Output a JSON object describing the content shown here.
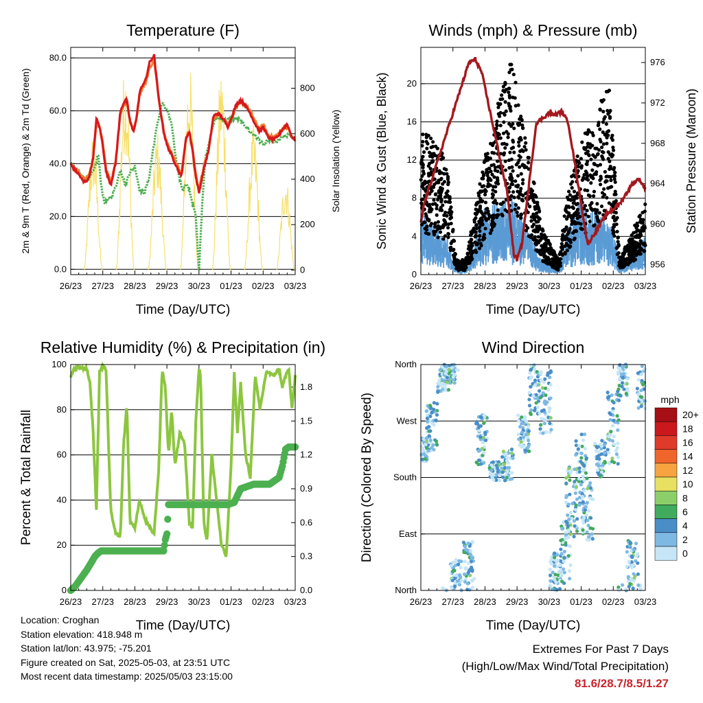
{
  "chart_data": [
    {
      "id": "temperature",
      "type": "line",
      "title": "Temperature (F)",
      "xlabel": "Time (Day/UTC)",
      "ylabel": "2m & 9m T (Red, Orange) & 2m Td (Green)",
      "ylabel_right": "Solar Insolation (Yellow)",
      "x_ticks": [
        "26/23",
        "27/23",
        "28/23",
        "29/23",
        "30/23",
        "01/23",
        "02/23",
        "03/23"
      ],
      "y_ticks": [
        "0.0",
        "20.0",
        "40.0",
        "60.0",
        "80.0"
      ],
      "y_ticks_right": [
        "0",
        "200",
        "400",
        "600",
        "800"
      ],
      "ylim": [
        -2,
        84
      ],
      "ylim_right": [
        -20,
        980
      ],
      "grid": true,
      "colors": {
        "t2m": "#d7191c",
        "t9m": "#f08030",
        "td2m": "#4caf50",
        "solar": "#f7e06a"
      },
      "series": [
        {
          "key": "t2m",
          "x": [
            0,
            0.1,
            0.25,
            0.4,
            0.55,
            0.7,
            0.8,
            0.9,
            1.0,
            1.1,
            1.25,
            1.4,
            1.55,
            1.65,
            1.75,
            1.85,
            1.95,
            2.05,
            2.15,
            2.25,
            2.35,
            2.45,
            2.6,
            2.75,
            2.9,
            3.0,
            3.15,
            3.3,
            3.45,
            3.6,
            3.7,
            3.8,
            3.9,
            4.0,
            4.15,
            4.3,
            4.45,
            4.6,
            4.75,
            4.9,
            5.0,
            5.15,
            5.3,
            5.45,
            5.6,
            5.75,
            5.9,
            6.0,
            6.15,
            6.3,
            6.45,
            6.6,
            6.75,
            6.9,
            7.0
          ],
          "y": [
            40,
            38,
            36,
            33,
            34,
            42,
            57,
            54,
            47,
            37,
            32,
            40,
            60,
            63,
            64,
            56,
            52,
            57,
            67,
            70,
            72,
            78,
            81,
            64,
            52,
            47,
            43,
            39,
            35,
            50,
            52,
            45,
            35,
            29,
            38,
            45,
            58,
            59,
            57,
            54,
            57,
            62,
            64,
            62,
            59,
            55,
            52,
            54,
            50,
            49,
            50,
            53,
            55,
            50,
            49
          ]
        },
        {
          "key": "t9m",
          "x": [
            0,
            0.1,
            0.25,
            0.4,
            0.55,
            0.7,
            0.8,
            0.9,
            1.0,
            1.1,
            1.25,
            1.4,
            1.55,
            1.65,
            1.75,
            1.85,
            1.95,
            2.05,
            2.15,
            2.25,
            2.35,
            2.45,
            2.6,
            2.75,
            2.9,
            3.0,
            3.15,
            3.3,
            3.45,
            3.6,
            3.7,
            3.8,
            3.9,
            4.0,
            4.15,
            4.3,
            4.45,
            4.6,
            4.75,
            4.9,
            5.0,
            5.15,
            5.3,
            5.45,
            5.6,
            5.75,
            5.9,
            6.0,
            6.15,
            6.3,
            6.45,
            6.6,
            6.75,
            6.9,
            7.0
          ],
          "y": [
            40,
            38.5,
            37,
            34,
            35,
            42,
            55,
            54,
            48,
            38,
            33,
            41,
            59,
            62,
            63,
            56,
            53,
            57,
            66,
            69,
            71,
            76,
            79,
            64,
            53,
            48,
            44,
            40,
            36,
            50,
            52,
            46,
            36,
            30,
            39,
            45,
            57,
            59,
            57,
            55,
            57,
            61,
            63,
            62,
            60,
            56,
            53,
            55,
            51,
            50,
            51,
            53,
            54,
            50,
            49
          ]
        },
        {
          "key": "td2m",
          "x": [
            0,
            0.15,
            0.3,
            0.45,
            0.6,
            0.75,
            0.85,
            0.95,
            1.05,
            1.15,
            1.3,
            1.45,
            1.55,
            1.7,
            1.85,
            2.0,
            2.15,
            2.3,
            2.45,
            2.55,
            2.7,
            2.85,
            3.0,
            3.15,
            3.3,
            3.4,
            3.5,
            3.6,
            3.7,
            3.8,
            3.9,
            3.95,
            4.0,
            4.1,
            4.2,
            4.35,
            4.5,
            4.65,
            4.8,
            5.0,
            5.2,
            5.4,
            5.6,
            5.8,
            6.0,
            6.2,
            6.4,
            6.6,
            6.8,
            7.0
          ],
          "y": [
            40,
            38,
            36,
            34,
            35,
            38,
            44,
            32,
            25,
            26,
            28,
            33,
            38,
            32,
            37,
            39,
            30,
            29,
            35,
            44,
            55,
            63,
            60,
            55,
            40,
            34,
            30,
            32,
            30,
            25,
            20,
            10,
            0,
            25,
            42,
            50,
            57,
            57,
            56,
            57,
            57,
            55,
            52,
            50,
            47,
            49,
            48,
            50,
            51,
            49
          ]
        },
        {
          "key": "solar",
          "axis": "right",
          "peaks": [
            {
              "x": 0.7,
              "y": 610
            },
            {
              "x": 1.7,
              "y": 930
            },
            {
              "x": 2.7,
              "y": 620
            },
            {
              "x": 3.7,
              "y": 920
            },
            {
              "x": 4.7,
              "y": 910
            },
            {
              "x": 5.7,
              "y": 640
            },
            {
              "x": 6.7,
              "y": 430
            }
          ]
        }
      ]
    },
    {
      "id": "winds",
      "type": "scatter",
      "title": "Winds (mph) & Pressure (mb)",
      "xlabel": "Time (Day/UTC)",
      "ylabel": "Sonic Wind & Gust (Blue, Black)",
      "ylabel_right": "Station Pressure (Maroon)",
      "x_ticks": [
        "26/23",
        "27/23",
        "28/23",
        "29/23",
        "30/23",
        "01/23",
        "02/23",
        "03/23"
      ],
      "y_ticks": [
        "0",
        "4",
        "8",
        "12",
        "16",
        "20"
      ],
      "y_ticks_right": [
        "956",
        "960",
        "964",
        "968",
        "972",
        "976"
      ],
      "ylim": [
        0,
        23.8
      ],
      "ylim_right": [
        955,
        977.5
      ],
      "grid": true,
      "colors": {
        "wind": "#5a9bd5",
        "gust": "#000000",
        "pressure": "#a3191e"
      },
      "wind_level": [
        {
          "x": 0,
          "y": 4
        },
        {
          "x": 0.8,
          "y": 2.5
        },
        {
          "x": 1.1,
          "y": 0.5
        },
        {
          "x": 1.4,
          "y": 0.5
        },
        {
          "x": 2.0,
          "y": 4.5
        },
        {
          "x": 2.9,
          "y": 5
        },
        {
          "x": 3.8,
          "y": 1
        },
        {
          "x": 4.3,
          "y": 0.5
        },
        {
          "x": 4.6,
          "y": 3
        },
        {
          "x": 5.0,
          "y": 5
        },
        {
          "x": 6.0,
          "y": 3
        },
        {
          "x": 6.2,
          "y": 0.5
        },
        {
          "x": 7.0,
          "y": 2.5
        }
      ],
      "gust_level": [
        {
          "x": 0,
          "y": 10
        },
        {
          "x": 0.8,
          "y": 8
        },
        {
          "x": 1.1,
          "y": 1
        },
        {
          "x": 1.4,
          "y": 1
        },
        {
          "x": 2.0,
          "y": 8
        },
        {
          "x": 2.8,
          "y": 15
        },
        {
          "x": 3.8,
          "y": 3
        },
        {
          "x": 4.3,
          "y": 1
        },
        {
          "x": 4.6,
          "y": 6
        },
        {
          "x": 5.0,
          "y": 9
        },
        {
          "x": 5.9,
          "y": 13
        },
        {
          "x": 6.2,
          "y": 1
        },
        {
          "x": 7.0,
          "y": 5
        }
      ],
      "pressure": {
        "x": [
          0,
          0.1,
          0.3,
          0.5,
          0.7,
          0.9,
          1.1,
          1.3,
          1.5,
          1.7,
          1.9,
          2.1,
          2.3,
          2.5,
          2.7,
          2.9,
          3.0,
          3.15,
          3.3,
          3.45,
          3.6,
          3.8,
          4.0,
          4.2,
          4.4,
          4.6,
          4.8,
          5.0,
          5.2,
          5.4,
          5.6,
          5.8,
          6.0,
          6.2,
          6.4,
          6.6,
          6.8,
          7.0
        ],
        "y": [
          960,
          962,
          964,
          966,
          968,
          970,
          972,
          974,
          976,
          976.3,
          975,
          972,
          969,
          966,
          963,
          957,
          956.5,
          958,
          962,
          966,
          970,
          970.5,
          971,
          970.8,
          971.2,
          970,
          966,
          962,
          958,
          959,
          960,
          961,
          961.5,
          962,
          963,
          964,
          964.5,
          963.5
        ]
      }
    },
    {
      "id": "humidity",
      "type": "line",
      "title": "Relative Humidity (%) & Precipitation (in)",
      "xlabel": "Time (Day/UTC)",
      "ylabel": "Percent & Total Rainfall",
      "x_ticks": [
        "26/23",
        "27/23",
        "28/23",
        "29/23",
        "30/23",
        "01/23",
        "02/23",
        "03/23"
      ],
      "y_ticks": [
        "0",
        "20",
        "40",
        "60",
        "80",
        "100"
      ],
      "y_ticks_right": [
        "0.0",
        "0.3",
        "0.6",
        "0.9",
        "1.2",
        "1.5",
        "1.8"
      ],
      "ylim": [
        0,
        100
      ],
      "ylim_right": [
        0,
        2.0
      ],
      "grid": true,
      "colors": {
        "rh": "#8cc63f",
        "precip": "#4cb050"
      },
      "series": [
        {
          "key": "rh",
          "x": [
            0,
            0.1,
            0.3,
            0.5,
            0.6,
            0.7,
            0.8,
            0.9,
            1.0,
            1.1,
            1.25,
            1.4,
            1.55,
            1.65,
            1.75,
            1.85,
            2.0,
            2.15,
            2.3,
            2.45,
            2.6,
            2.75,
            2.85,
            2.95,
            3.05,
            3.15,
            3.25,
            3.4,
            3.55,
            3.7,
            3.8,
            3.9,
            4.0,
            4.05,
            4.15,
            4.25,
            4.4,
            4.55,
            4.7,
            4.85,
            5.0,
            5.1,
            5.2,
            5.3,
            5.45,
            5.6,
            5.75,
            5.9,
            6.1,
            6.3,
            6.5,
            6.6,
            6.7,
            6.8,
            6.9,
            7.0
          ],
          "y": [
            95,
            98,
            99,
            98,
            92,
            70,
            35,
            97,
            99,
            98,
            35,
            25,
            24,
            65,
            82,
            30,
            28,
            40,
            32,
            28,
            25,
            55,
            98,
            90,
            60,
            80,
            55,
            70,
            65,
            30,
            28,
            75,
            98,
            95,
            30,
            22,
            60,
            40,
            20,
            15,
            55,
            96,
            70,
            92,
            60,
            50,
            95,
            80,
            97,
            95,
            98,
            90,
            95,
            98,
            80,
            95
          ]
        },
        {
          "key": "precip",
          "axis": "right",
          "x": [
            0,
            0.15,
            0.3,
            0.5,
            0.65,
            0.75,
            0.85,
            0.95,
            1.0,
            2.9,
            2.95,
            3.0,
            3.05,
            4.9,
            5.1,
            5.2,
            5.3,
            5.5,
            5.7,
            6.2,
            6.5,
            6.6,
            6.7,
            6.8,
            7.0
          ],
          "y": [
            0,
            0.04,
            0.1,
            0.18,
            0.25,
            0.3,
            0.33,
            0.35,
            0.35,
            0.35,
            0.45,
            0.5,
            0.76,
            0.76,
            0.78,
            0.84,
            0.9,
            0.92,
            0.94,
            0.94,
            1.0,
            1.1,
            1.25,
            1.27,
            1.27
          ]
        }
      ]
    },
    {
      "id": "direction",
      "type": "scatter",
      "title": "Wind Direction",
      "xlabel": "Time (Day/UTC)",
      "ylabel": "Direction (Colored By Speed)",
      "x_ticks": [
        "26/23",
        "27/23",
        "28/23",
        "29/23",
        "30/23",
        "01/23",
        "02/23",
        "03/23"
      ],
      "y_ticks": [
        "North",
        "East",
        "South",
        "West",
        "North"
      ],
      "ylim": [
        0,
        360
      ],
      "grid": true,
      "legend": {
        "title": "mph",
        "placement": "right",
        "labels": [
          "20+",
          "18",
          "16",
          "14",
          "12",
          "10",
          "8",
          "6",
          "4",
          "2",
          "0"
        ],
        "colors": [
          "#a50f15",
          "#cb181d",
          "#e03a2a",
          "#f0652c",
          "#f7a440",
          "#e8e060",
          "#8ccf6a",
          "#41ab5d",
          "#4a8ec8",
          "#7eb9e3",
          "#c6e6f7"
        ]
      },
      "clusters": [
        {
          "x": 0.1,
          "dir": 225,
          "spread": 20
        },
        {
          "x": 0.35,
          "dir": 260,
          "spread": 40
        },
        {
          "x": 0.7,
          "dir": 340,
          "spread": 25
        },
        {
          "x": 0.9,
          "dir": 345,
          "spread": 15
        },
        {
          "x": 1.1,
          "dir": 20,
          "spread": 30
        },
        {
          "x": 1.5,
          "dir": 40,
          "spread": 40
        },
        {
          "x": 1.9,
          "dir": 240,
          "spread": 40
        },
        {
          "x": 2.3,
          "dir": 190,
          "spread": 15
        },
        {
          "x": 2.7,
          "dir": 200,
          "spread": 25
        },
        {
          "x": 3.2,
          "dir": 250,
          "spread": 30
        },
        {
          "x": 3.55,
          "dir": 320,
          "spread": 40
        },
        {
          "x": 3.9,
          "dir": 300,
          "spread": 50
        },
        {
          "x": 4.2,
          "dir": 30,
          "spread": 30
        },
        {
          "x": 4.5,
          "dir": 60,
          "spread": 50
        },
        {
          "x": 4.7,
          "dir": 140,
          "spread": 60
        },
        {
          "x": 5.0,
          "dir": 190,
          "spread": 60
        },
        {
          "x": 5.2,
          "dir": 130,
          "spread": 50
        },
        {
          "x": 5.6,
          "dir": 210,
          "spread": 30
        },
        {
          "x": 6.0,
          "dir": 260,
          "spread": 60
        },
        {
          "x": 6.3,
          "dir": 340,
          "spread": 30
        },
        {
          "x": 6.6,
          "dir": 40,
          "spread": 40
        },
        {
          "x": 6.9,
          "dir": 330,
          "spread": 40
        }
      ]
    }
  ],
  "info": {
    "location": "Location: Croghan",
    "elevation": "Station elevation: 418.948 m",
    "latlon": "Station lat/lon: 43.975; -75.201",
    "created": "Figure created on Sat, 2025-05-03, at 23:51 UTC",
    "timestamp": "Most recent data timestamp: 2025/05/03 23:15:00"
  },
  "extremes": {
    "line1": "Extremes For Past 7 Days",
    "line2": "(High/Low/Max Wind/Total Precipitation)",
    "values": "81.6/28.7/8.5/1.27"
  }
}
